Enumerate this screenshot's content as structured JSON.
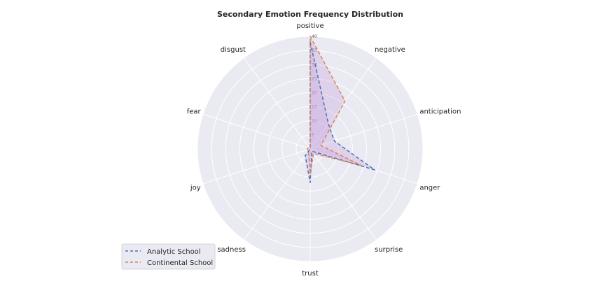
{
  "chart_data": {
    "type": "radar",
    "title": "Secondary Emotion Frequency Distribution",
    "categories": [
      "positive",
      "negative",
      "anticipation",
      "anger",
      "surprise",
      "trust",
      "sadness",
      "joy",
      "fear",
      "disgust"
    ],
    "rlim": [
      0,
      40
    ],
    "rticks": [
      5,
      10,
      15,
      20,
      25,
      30,
      35,
      40
    ],
    "grid": true,
    "legend_position": "lower-left",
    "series": [
      {
        "name": "Analytic School",
        "color": "#4c72b0",
        "values": [
          38,
          11,
          9,
          24,
          1,
          12,
          3,
          0,
          0,
          0
        ]
      },
      {
        "name": "Continental School",
        "color": "#dd8452",
        "values": [
          40,
          21,
          4,
          19,
          2,
          9,
          1,
          1,
          1,
          0
        ]
      }
    ],
    "fill_color": "#c8a7e0"
  }
}
